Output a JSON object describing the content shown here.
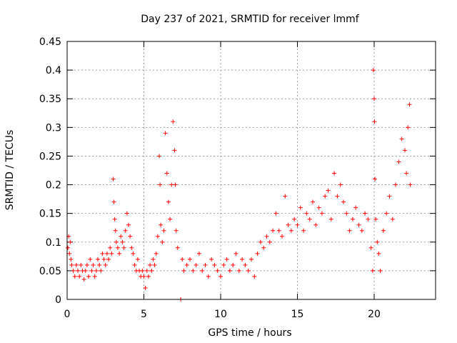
{
  "chart_data": {
    "type": "scatter",
    "title": "Day 237 of 2021, SRMTID for receiver lmmf",
    "xlabel": "GPS time / hours",
    "ylabel": "SRMTID / TECUs",
    "xlim": [
      0,
      24
    ],
    "ylim": [
      0,
      0.45
    ],
    "x_ticks": [
      0,
      5,
      10,
      15,
      20
    ],
    "x_tick_labels": [
      "0",
      "5",
      "10",
      "15",
      "20"
    ],
    "y_ticks": [
      0,
      0.05,
      0.1,
      0.15,
      0.2,
      0.25,
      0.3,
      0.35,
      0.4,
      0.45
    ],
    "y_tick_labels": [
      "0",
      "0.05",
      "0.1",
      "0.15",
      "0.2",
      "0.25",
      "0.3",
      "0.35",
      "0.4",
      "0.45"
    ],
    "grid": true,
    "marker": "+",
    "color": "#ff0000",
    "series": [
      {
        "name": "SRMTID",
        "points": [
          [
            0.05,
            0.09
          ],
          [
            0.1,
            0.11
          ],
          [
            0.15,
            0.08
          ],
          [
            0.2,
            0.1
          ],
          [
            0.25,
            0.07
          ],
          [
            0.3,
            0.06
          ],
          [
            0.4,
            0.05
          ],
          [
            0.5,
            0.04
          ],
          [
            0.6,
            0.06
          ],
          [
            0.7,
            0.05
          ],
          [
            0.8,
            0.04
          ],
          [
            0.9,
            0.06
          ],
          [
            1.0,
            0.05
          ],
          [
            1.1,
            0.035
          ],
          [
            1.2,
            0.05
          ],
          [
            1.3,
            0.06
          ],
          [
            1.4,
            0.04
          ],
          [
            1.5,
            0.07
          ],
          [
            1.6,
            0.05
          ],
          [
            1.7,
            0.06
          ],
          [
            1.8,
            0.04
          ],
          [
            1.9,
            0.05
          ],
          [
            2.0,
            0.07
          ],
          [
            2.1,
            0.06
          ],
          [
            2.2,
            0.05
          ],
          [
            2.3,
            0.08
          ],
          [
            2.4,
            0.07
          ],
          [
            2.5,
            0.06
          ],
          [
            2.6,
            0.08
          ],
          [
            2.7,
            0.07
          ],
          [
            2.8,
            0.09
          ],
          [
            2.9,
            0.08
          ],
          [
            3.0,
            0.21
          ],
          [
            3.05,
            0.17
          ],
          [
            3.1,
            0.14
          ],
          [
            3.15,
            0.12
          ],
          [
            3.2,
            0.1
          ],
          [
            3.3,
            0.09
          ],
          [
            3.4,
            0.08
          ],
          [
            3.5,
            0.11
          ],
          [
            3.6,
            0.1
          ],
          [
            3.7,
            0.09
          ],
          [
            3.8,
            0.12
          ],
          [
            3.9,
            0.15
          ],
          [
            4.0,
            0.13
          ],
          [
            4.1,
            0.11
          ],
          [
            4.2,
            0.09
          ],
          [
            4.3,
            0.08
          ],
          [
            4.4,
            0.06
          ],
          [
            4.5,
            0.05
          ],
          [
            4.6,
            0.07
          ],
          [
            4.7,
            0.05
          ],
          [
            4.8,
            0.04
          ],
          [
            4.9,
            0.05
          ],
          [
            5.0,
            0.04
          ],
          [
            5.1,
            0.02
          ],
          [
            5.2,
            0.05
          ],
          [
            5.3,
            0.04
          ],
          [
            5.4,
            0.06
          ],
          [
            5.5,
            0.05
          ],
          [
            5.6,
            0.07
          ],
          [
            5.7,
            0.06
          ],
          [
            5.8,
            0.08
          ],
          [
            5.9,
            0.11
          ],
          [
            6.0,
            0.25
          ],
          [
            6.05,
            0.2
          ],
          [
            6.1,
            0.13
          ],
          [
            6.2,
            0.1
          ],
          [
            6.3,
            0.12
          ],
          [
            6.4,
            0.29
          ],
          [
            6.5,
            0.22
          ],
          [
            6.6,
            0.17
          ],
          [
            6.7,
            0.14
          ],
          [
            6.8,
            0.2
          ],
          [
            6.9,
            0.31
          ],
          [
            7.0,
            0.26
          ],
          [
            7.05,
            0.2
          ],
          [
            7.1,
            0.12
          ],
          [
            7.2,
            0.09
          ],
          [
            7.4,
            0.0
          ],
          [
            7.5,
            0.07
          ],
          [
            7.6,
            0.05
          ],
          [
            7.8,
            0.06
          ],
          [
            8.0,
            0.07
          ],
          [
            8.2,
            0.05
          ],
          [
            8.4,
            0.06
          ],
          [
            8.6,
            0.08
          ],
          [
            8.8,
            0.05
          ],
          [
            9.0,
            0.06
          ],
          [
            9.2,
            0.04
          ],
          [
            9.4,
            0.07
          ],
          [
            9.6,
            0.06
          ],
          [
            9.8,
            0.05
          ],
          [
            10.0,
            0.04
          ],
          [
            10.2,
            0.06
          ],
          [
            10.4,
            0.07
          ],
          [
            10.6,
            0.05
          ],
          [
            10.8,
            0.06
          ],
          [
            11.0,
            0.08
          ],
          [
            11.2,
            0.05
          ],
          [
            11.4,
            0.07
          ],
          [
            11.6,
            0.06
          ],
          [
            11.8,
            0.05
          ],
          [
            12.0,
            0.07
          ],
          [
            12.2,
            0.04
          ],
          [
            12.4,
            0.08
          ],
          [
            12.6,
            0.1
          ],
          [
            12.8,
            0.09
          ],
          [
            13.0,
            0.11
          ],
          [
            13.2,
            0.1
          ],
          [
            13.4,
            0.12
          ],
          [
            13.6,
            0.15
          ],
          [
            13.8,
            0.12
          ],
          [
            14.0,
            0.11
          ],
          [
            14.2,
            0.18
          ],
          [
            14.4,
            0.13
          ],
          [
            14.6,
            0.12
          ],
          [
            14.8,
            0.14
          ],
          [
            15.0,
            0.13
          ],
          [
            15.2,
            0.16
          ],
          [
            15.4,
            0.12
          ],
          [
            15.6,
            0.15
          ],
          [
            15.8,
            0.14
          ],
          [
            16.0,
            0.17
          ],
          [
            16.2,
            0.13
          ],
          [
            16.4,
            0.16
          ],
          [
            16.6,
            0.15
          ],
          [
            16.8,
            0.18
          ],
          [
            17.0,
            0.19
          ],
          [
            17.2,
            0.14
          ],
          [
            17.4,
            0.22
          ],
          [
            17.6,
            0.18
          ],
          [
            17.8,
            0.2
          ],
          [
            18.0,
            0.17
          ],
          [
            18.2,
            0.15
          ],
          [
            18.4,
            0.12
          ],
          [
            18.6,
            0.14
          ],
          [
            18.8,
            0.16
          ],
          [
            19.0,
            0.13
          ],
          [
            19.2,
            0.12
          ],
          [
            19.4,
            0.15
          ],
          [
            19.6,
            0.14
          ],
          [
            19.8,
            0.09
          ],
          [
            19.9,
            0.05
          ],
          [
            19.95,
            0.4
          ],
          [
            20.0,
            0.35
          ],
          [
            20.02,
            0.31
          ],
          [
            20.05,
            0.21
          ],
          [
            20.1,
            0.14
          ],
          [
            20.2,
            0.1
          ],
          [
            20.3,
            0.08
          ],
          [
            20.4,
            0.05
          ],
          [
            20.6,
            0.12
          ],
          [
            20.8,
            0.15
          ],
          [
            21.0,
            0.18
          ],
          [
            21.2,
            0.14
          ],
          [
            21.4,
            0.2
          ],
          [
            21.6,
            0.24
          ],
          [
            21.8,
            0.28
          ],
          [
            22.0,
            0.26
          ],
          [
            22.1,
            0.22
          ],
          [
            22.2,
            0.3
          ],
          [
            22.3,
            0.34
          ],
          [
            22.35,
            0.2
          ]
        ]
      }
    ]
  }
}
